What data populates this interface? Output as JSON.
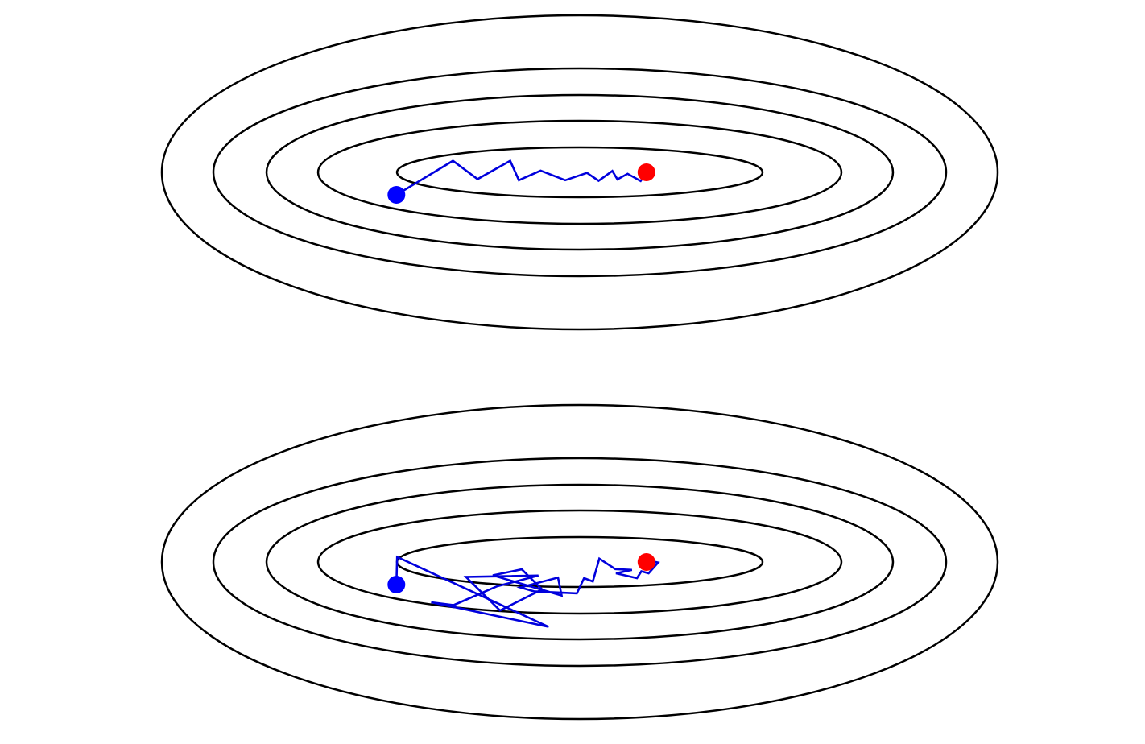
{
  "colors": {
    "contour": "#000000",
    "path": "#0000dd",
    "start_point": "#0000ff",
    "minimum_point": "#ff0000",
    "background": "#ffffff"
  },
  "panels": [
    {
      "id": "top",
      "description_word": "smooth-zigzag",
      "contour_levels": [
        1,
        2,
        3,
        4,
        5
      ],
      "path": [
        [
          -2.53,
          0.8
        ],
        [
          -1.75,
          -0.41
        ],
        [
          -1.41,
          0.24
        ],
        [
          -0.96,
          -0.41
        ],
        [
          -0.84,
          0.28
        ],
        [
          -0.54,
          -0.06
        ],
        [
          -0.2,
          0.28
        ],
        [
          0.1,
          0.02
        ],
        [
          0.26,
          0.3
        ],
        [
          0.45,
          -0.05
        ],
        [
          0.52,
          0.25
        ],
        [
          0.66,
          0.05
        ],
        [
          0.84,
          0.31
        ],
        [
          0.92,
          0.0
        ]
      ],
      "start": [
        -2.53,
        0.8
      ],
      "minimum": [
        0.92,
        0.0
      ]
    },
    {
      "id": "bottom",
      "description_word": "noisy",
      "contour_levels": [
        1,
        2,
        3,
        4,
        5
      ],
      "path": [
        [
          -2.53,
          0.8
        ],
        [
          -2.52,
          -0.18
        ],
        [
          -0.43,
          2.3
        ],
        [
          -2.05,
          1.43
        ],
        [
          -1.74,
          1.53
        ],
        [
          -1.14,
          0.86
        ],
        [
          -0.57,
          0.48
        ],
        [
          -1.57,
          0.53
        ],
        [
          -1.1,
          1.72
        ],
        [
          -0.52,
          0.97
        ],
        [
          -0.8,
          0.26
        ],
        [
          -1.2,
          0.47
        ],
        [
          -0.25,
          1.19
        ],
        [
          -0.3,
          0.55
        ],
        [
          -0.82,
          0.9
        ],
        [
          -0.63,
          1.04
        ],
        [
          -0.04,
          1.11
        ],
        [
          0.06,
          0.57
        ],
        [
          0.18,
          0.69
        ],
        [
          0.27,
          -0.12
        ],
        [
          0.49,
          0.25
        ],
        [
          0.72,
          0.28
        ],
        [
          0.5,
          0.4
        ],
        [
          0.79,
          0.57
        ],
        [
          0.85,
          0.33
        ],
        [
          0.95,
          0.4
        ],
        [
          1.05,
          0.11
        ],
        [
          0.92,
          0.05
        ],
        [
          0.83,
          0.13
        ],
        [
          0.96,
          -0.05
        ],
        [
          1.08,
          0.02
        ],
        [
          1.05,
          0.1
        ]
      ],
      "start": [
        -2.53,
        0.8
      ],
      "minimum": [
        0.92,
        0.0
      ]
    }
  ]
}
